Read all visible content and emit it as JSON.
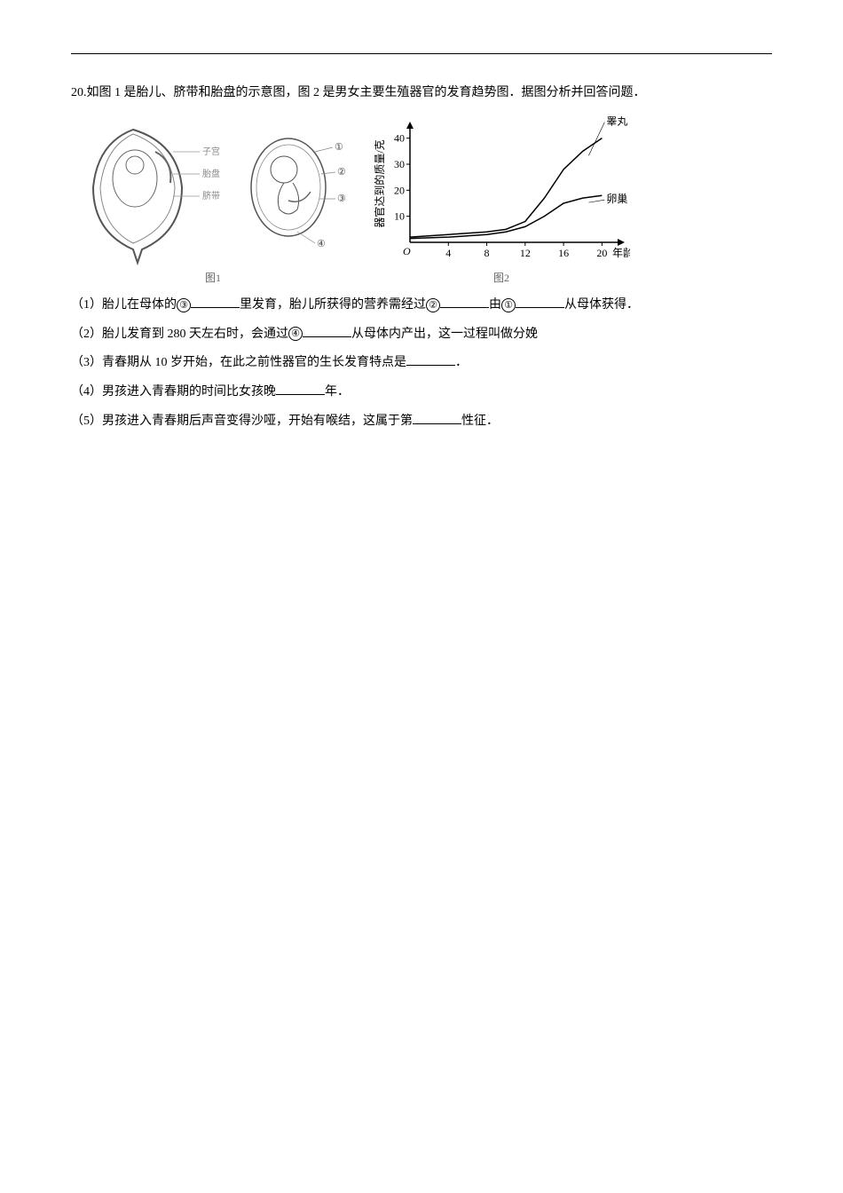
{
  "question": {
    "number": "20.",
    "stem": "如图 1 是胎儿、脐带和胎盘的示意图，图 2 是男女主要生殖器官的发育趋势图．据图分析并回答问题．",
    "fig1_caption": "图1",
    "fig2_caption": "图2",
    "fig1_labels": {
      "l1": "子宫",
      "l2": "胎盘",
      "l3": "脐带",
      "c1": "①",
      "c2": "②",
      "c3": "③",
      "c4": "④"
    },
    "chart": {
      "type": "line",
      "y_axis_label": "器官达到的质量/克",
      "x_axis_label": "年龄/岁",
      "y_ticks": [
        10,
        20,
        30,
        40
      ],
      "x_ticks": [
        4,
        8,
        12,
        16,
        20
      ],
      "ylim": [
        0,
        45
      ],
      "xlim": [
        0,
        22
      ],
      "origin_label": "O",
      "series": [
        {
          "name": "睾丸",
          "label": "睾丸",
          "points": [
            [
              0,
              2
            ],
            [
              4,
              3
            ],
            [
              8,
              4
            ],
            [
              10,
              5
            ],
            [
              12,
              8
            ],
            [
              14,
              17
            ],
            [
              16,
              28
            ],
            [
              18,
              35
            ],
            [
              20,
              40
            ]
          ],
          "color": "#000000",
          "line_width": 1.5
        },
        {
          "name": "卵巢",
          "label": "卵巢",
          "points": [
            [
              0,
              1.5
            ],
            [
              4,
              2
            ],
            [
              8,
              3
            ],
            [
              10,
              4
            ],
            [
              12,
              6
            ],
            [
              14,
              10
            ],
            [
              16,
              15
            ],
            [
              18,
              17
            ],
            [
              20,
              18
            ]
          ],
          "color": "#000000",
          "line_width": 1.5
        }
      ],
      "background_color": "#ffffff",
      "axis_color": "#000000",
      "font_size": 12
    },
    "subs": {
      "q1_a": "（1）胎儿在母体的",
      "q1_b": "里发育，胎儿所获得的营养需经过",
      "q1_c": "由",
      "q1_d": "从母体获得．",
      "q2_a": "（2）胎儿发育到 280 天左右时，会通过",
      "q2_b": "从母体内产出，这一过程叫做分娩",
      "q3_a": "（3）青春期从 10 岁开始，在此之前性器官的生长发育特点是",
      "q3_b": "．",
      "q4_a": "（4）男孩进入青春期的时间比女孩晚",
      "q4_b": "年．",
      "q5_a": "（5）男孩进入青春期后声音变得沙哑，开始有喉结，这属于第",
      "q5_b": "性征．",
      "c3": "③",
      "c2": "②",
      "c1": "①",
      "c4": "④"
    }
  }
}
